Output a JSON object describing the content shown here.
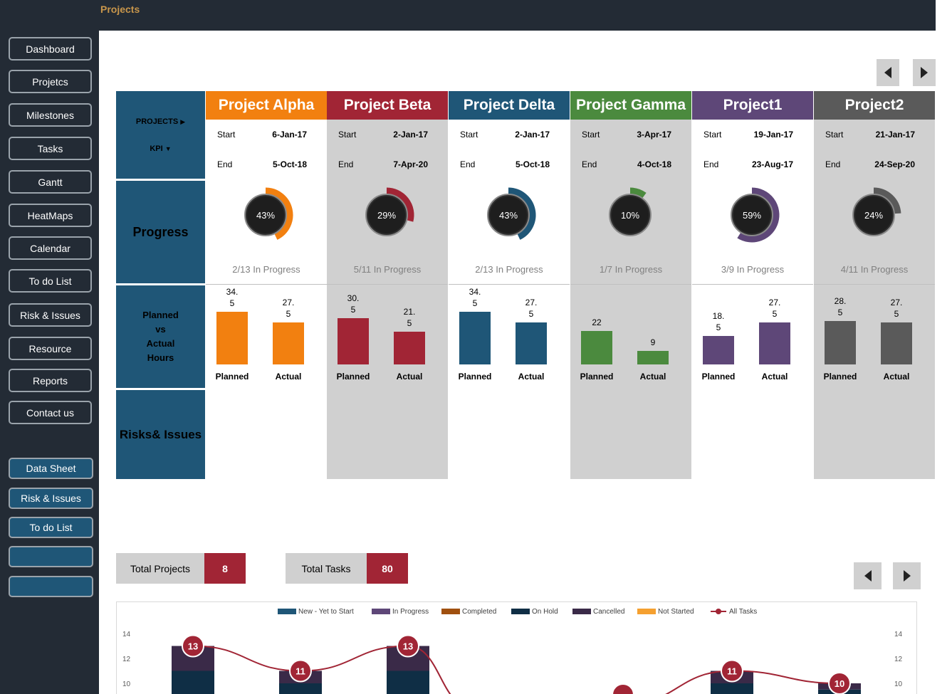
{
  "header": {
    "title": "Projects"
  },
  "sidebar": {
    "items": [
      "Dashboard",
      "Projetcs",
      "Milestones",
      "Tasks",
      "Gantt",
      "HeatMaps",
      "Calendar",
      "To do List",
      "Risk & Issues",
      "Resource",
      "Reports",
      "Contact us"
    ],
    "data_items": [
      "Data Sheet",
      "Risk & Issues",
      "To do List",
      "",
      ""
    ]
  },
  "kpi": {
    "projects_label": "PROJECTS",
    "kpi_label": "KPI",
    "progress": "Progress",
    "hours_lines": [
      "Planned",
      "vs",
      "Actual",
      "Hours"
    ],
    "risks": "Risks& Issues"
  },
  "labels": {
    "start": "Start",
    "end": "End",
    "planned": "Planned",
    "actual": "Actual"
  },
  "projects": [
    {
      "name": "Project Alpha",
      "color": "#f28010",
      "bg": "#ffffff",
      "start": "6-Jan-17",
      "end": "5-Oct-18",
      "progress_label": "43%",
      "progress": 0.43,
      "in_progress": "2/13 In Progress",
      "planned": 34.5,
      "actual": 27.5,
      "planned_lines": [
        "34.",
        "5"
      ],
      "actual_lines": [
        "27.",
        "5"
      ]
    },
    {
      "name": "Project Beta",
      "color": "#a12535",
      "bg": "#d0d0d0",
      "start": "2-Jan-17",
      "end": "7-Apr-20",
      "progress_label": "29%",
      "progress": 0.29,
      "in_progress": "5/11 In Progress",
      "planned": 30.5,
      "actual": 21.5,
      "planned_lines": [
        "30.",
        "5"
      ],
      "actual_lines": [
        "21.",
        "5"
      ]
    },
    {
      "name": "Project Delta",
      "color": "#1f5677",
      "bg": "#ffffff",
      "start": "2-Jan-17",
      "end": "5-Oct-18",
      "progress_label": "43%",
      "progress": 0.43,
      "in_progress": "2/13 In Progress",
      "planned": 34.5,
      "actual": 27.5,
      "planned_lines": [
        "34.",
        "5"
      ],
      "actual_lines": [
        "27.",
        "5"
      ]
    },
    {
      "name": "Project Gamma",
      "color": "#4b8a3e",
      "bg": "#d0d0d0",
      "start": "3-Apr-17",
      "end": "4-Oct-18",
      "progress_label": "10%",
      "progress": 0.1,
      "in_progress": "1/7 In Progress",
      "planned": 22,
      "actual": 9,
      "planned_lines": [
        "22"
      ],
      "actual_lines": [
        "9"
      ]
    },
    {
      "name": "Project1",
      "color": "#5e4778",
      "bg": "#ffffff",
      "start": "19-Jan-17",
      "end": "23-Aug-17",
      "progress_label": "59%",
      "progress": 0.59,
      "in_progress": "3/9 In Progress",
      "planned": 18.5,
      "actual": 27.5,
      "planned_lines": [
        "18.",
        "5"
      ],
      "actual_lines": [
        "27.",
        "5"
      ]
    },
    {
      "name": "Project2",
      "color": "#5a5a5a",
      "bg": "#d0d0d0",
      "start": "21-Jan-17",
      "end": "24-Sep-20",
      "progress_label": "24%",
      "progress": 0.24,
      "in_progress": "4/11 In Progress",
      "planned": 28.5,
      "actual": 27.5,
      "planned_lines": [
        "28.",
        "5"
      ],
      "actual_lines": [
        "27.",
        "5"
      ]
    }
  ],
  "totals": {
    "projects_label": "Total Projects",
    "projects_value": "8",
    "tasks_label": "Total Tasks",
    "tasks_value": "80"
  },
  "chart_data": {
    "type": "bar",
    "legend": [
      {
        "name": "New - Yet to Start",
        "color": "#1f5677"
      },
      {
        "name": "In Progress",
        "color": "#5e4778"
      },
      {
        "name": "Completed",
        "color": "#a0500f"
      },
      {
        "name": "On Hold",
        "color": "#0f2e45"
      },
      {
        "name": "Cancelled",
        "color": "#3a2a48"
      },
      {
        "name": "Not Started",
        "color": "#f5a030"
      },
      {
        "name": "All Tasks",
        "color": "#a12535"
      }
    ],
    "y_ticks": [
      "14",
      "12",
      "10"
    ],
    "ylim_visible": [
      9,
      14.5
    ],
    "stacks": [
      {
        "total": 13,
        "bottom": 11,
        "top": 13
      },
      {
        "total": 11,
        "bottom": 10,
        "top": 11
      },
      {
        "total": 13,
        "bottom": 11,
        "top": 13
      },
      {
        "total": null
      },
      {
        "total": null
      },
      {
        "total": 11,
        "bottom": 10,
        "top": 11
      },
      {
        "total": 10,
        "bottom": 9.5,
        "top": 10
      }
    ],
    "all_tasks_labels": [
      "13",
      "11",
      "13",
      "",
      "",
      "11",
      "10"
    ]
  }
}
